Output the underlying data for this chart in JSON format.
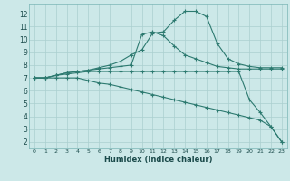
{
  "xlabel": "Humidex (Indice chaleur)",
  "background_color": "#cce8e8",
  "grid_color": "#aacfcf",
  "line_color": "#2d7a70",
  "xlim": [
    -0.5,
    23.5
  ],
  "ylim": [
    1.5,
    12.8
  ],
  "xticks": [
    0,
    1,
    2,
    3,
    4,
    5,
    6,
    7,
    8,
    9,
    10,
    11,
    12,
    13,
    14,
    15,
    16,
    17,
    18,
    19,
    20,
    21,
    22,
    23
  ],
  "yticks": [
    2,
    3,
    4,
    5,
    6,
    7,
    8,
    9,
    10,
    11,
    12
  ],
  "lines": [
    {
      "x": [
        0,
        1,
        2,
        3,
        4,
        5,
        6,
        7,
        8,
        9,
        10,
        11,
        12,
        13,
        14,
        15,
        16,
        17,
        18,
        19,
        20,
        21,
        22,
        23
      ],
      "y": [
        7.0,
        7.0,
        7.2,
        7.4,
        7.5,
        7.6,
        7.8,
        8.0,
        8.3,
        8.8,
        9.2,
        10.5,
        10.6,
        11.5,
        12.2,
        12.2,
        11.8,
        9.7,
        8.5,
        8.1,
        7.9,
        7.8,
        7.8,
        7.8
      ]
    },
    {
      "x": [
        0,
        1,
        2,
        3,
        4,
        5,
        6,
        7,
        8,
        9,
        10,
        11,
        12,
        13,
        14,
        15,
        16,
        17,
        18,
        19,
        20,
        21,
        22,
        23
      ],
      "y": [
        7.0,
        7.0,
        7.2,
        7.4,
        7.5,
        7.6,
        7.7,
        7.8,
        7.9,
        8.0,
        10.4,
        10.6,
        10.3,
        9.5,
        8.8,
        8.5,
        8.2,
        7.9,
        7.8,
        7.7,
        7.7,
        7.7,
        7.7,
        7.7
      ]
    },
    {
      "x": [
        0,
        1,
        2,
        3,
        4,
        5,
        6,
        7,
        8,
        9,
        10,
        11,
        12,
        13,
        14,
        15,
        16,
        17,
        18,
        19,
        20,
        21,
        22,
        23
      ],
      "y": [
        7.0,
        7.0,
        7.2,
        7.3,
        7.4,
        7.5,
        7.5,
        7.5,
        7.5,
        7.5,
        7.5,
        7.5,
        7.5,
        7.5,
        7.5,
        7.5,
        7.5,
        7.5,
        7.5,
        7.5,
        5.3,
        4.3,
        3.2,
        2.0
      ]
    },
    {
      "x": [
        0,
        1,
        2,
        3,
        4,
        5,
        6,
        7,
        8,
        9,
        10,
        11,
        12,
        13,
        14,
        15,
        16,
        17,
        18,
        19,
        20,
        21,
        22,
        23
      ],
      "y": [
        7.0,
        7.0,
        7.0,
        7.0,
        7.0,
        6.8,
        6.6,
        6.5,
        6.3,
        6.1,
        5.9,
        5.7,
        5.5,
        5.3,
        5.1,
        4.9,
        4.7,
        4.5,
        4.3,
        4.1,
        3.9,
        3.7,
        3.2,
        2.0
      ]
    }
  ]
}
